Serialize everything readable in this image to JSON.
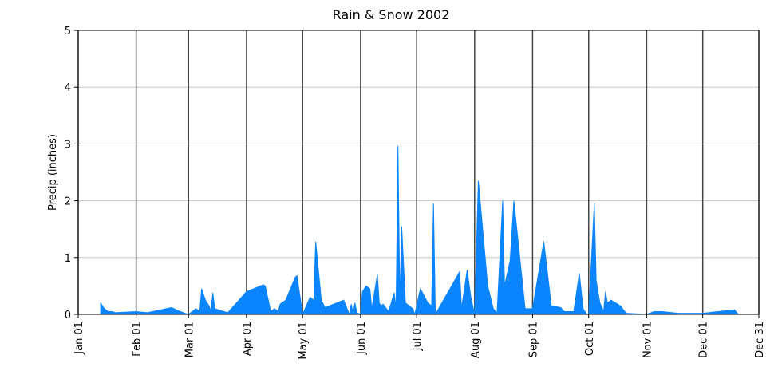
{
  "chart_data": {
    "type": "area",
    "title": "Rain & Snow 2002",
    "ylabel": "Precip (inches)",
    "color": "#0a84ff",
    "grid": true,
    "x": [
      13,
      15,
      17,
      19,
      21,
      32,
      38,
      51,
      54,
      58,
      60,
      64,
      66,
      67,
      69,
      71,
      72,
      73,
      74,
      79,
      81,
      91,
      100,
      101,
      104,
      106,
      108,
      109,
      112,
      117,
      118,
      121,
      125,
      127,
      128,
      131,
      133,
      143,
      146,
      147,
      148,
      149,
      150,
      152,
      153,
      155,
      157,
      158,
      161,
      162,
      163,
      164,
      167,
      170,
      171,
      172,
      173,
      174,
      176,
      180,
      181,
      184,
      188,
      190,
      191,
      192,
      205,
      206,
      209,
      211,
      213,
      215,
      220,
      223,
      225,
      228,
      229,
      232,
      234,
      240,
      244,
      250,
      254,
      259,
      261,
      266,
      269,
      271,
      273,
      274,
      277,
      278,
      280,
      282,
      283,
      284,
      286,
      291,
      294,
      305,
      309,
      313,
      322,
      335,
      352,
      354
    ],
    "values": [
      0.2,
      0.1,
      0.05,
      0.05,
      0.03,
      0.05,
      0.03,
      0.12,
      0.07,
      0.02,
      0,
      0.1,
      0.05,
      0.45,
      0.25,
      0.15,
      0.05,
      0.38,
      0.1,
      0.05,
      0.03,
      0.4,
      0.52,
      0.5,
      0.05,
      0.1,
      0.05,
      0.18,
      0.25,
      0.65,
      0.68,
      0,
      0.3,
      0.25,
      1.28,
      0.25,
      0.12,
      0.25,
      0,
      0.18,
      0.02,
      0.2,
      0.03,
      0,
      0.4,
      0.5,
      0.45,
      0.1,
      0.7,
      0.2,
      0.15,
      0.18,
      0.05,
      0.38,
      0.1,
      2.97,
      0.2,
      1.55,
      0.2,
      0.1,
      0,
      0.45,
      0.2,
      0.15,
      1.95,
      0,
      0.75,
      0.1,
      0.78,
      0.3,
      0,
      2.35,
      0.5,
      0.1,
      0.02,
      2,
      0.5,
      0.95,
      2,
      0.1,
      0.1,
      1.28,
      0.15,
      0.12,
      0.05,
      0.05,
      0.72,
      0.1,
      0,
      0,
      1.95,
      0.6,
      0.2,
      0.05,
      0.4,
      0.2,
      0.25,
      0.15,
      0.02,
      0,
      0.05,
      0.05,
      0.02,
      0.02,
      0.08,
      0
    ],
    "xlim": [
      1,
      365
    ],
    "xticks": [
      {
        "value": 1,
        "label": "Jan 01"
      },
      {
        "value": 32,
        "label": "Feb 01"
      },
      {
        "value": 60,
        "label": "Mar 01"
      },
      {
        "value": 91,
        "label": "Apr 01"
      },
      {
        "value": 121,
        "label": "May 01"
      },
      {
        "value": 152,
        "label": "Jun 01"
      },
      {
        "value": 182,
        "label": "Jul 01"
      },
      {
        "value": 213,
        "label": "Aug 01"
      },
      {
        "value": 244,
        "label": "Sep 01"
      },
      {
        "value": 274,
        "label": "Oct 01"
      },
      {
        "value": 305,
        "label": "Nov 01"
      },
      {
        "value": 335,
        "label": "Dec 01"
      },
      {
        "value": 365,
        "label": "Dec 31"
      }
    ],
    "ylim": [
      0,
      5
    ],
    "yticks": [
      0,
      1,
      2,
      3,
      4,
      5
    ]
  }
}
